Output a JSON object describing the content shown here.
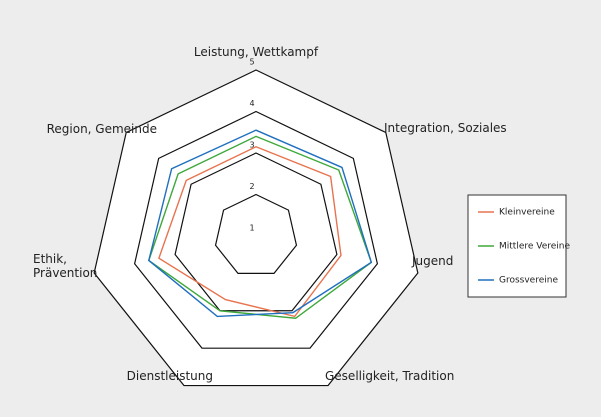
{
  "chart_data": {
    "type": "radar",
    "categories": [
      "Leistung, Wettkampf",
      "Integration, Soziales",
      "Jugend",
      "Geselligkeit, Tradition",
      "Dienstleistung",
      "Ethik, Prävention",
      "Region, Gemeinde"
    ],
    "series": [
      {
        "name": "Kleinvereine",
        "color": "#e8734f",
        "values": [
          3.15,
          3.3,
          3.1,
          3.15,
          2.7,
          3.4,
          3.15
        ]
      },
      {
        "name": "Mittlere Vereine",
        "color": "#3ea83a",
        "values": [
          3.4,
          3.55,
          3.85,
          3.2,
          3.0,
          3.65,
          3.4
        ]
      },
      {
        "name": "Grossvereine",
        "color": "#1f6fbf",
        "values": [
          3.55,
          3.65,
          3.85,
          3.05,
          3.15,
          3.65,
          3.6
        ]
      }
    ],
    "ylim": [
      1,
      5
    ],
    "yticks": [
      1,
      2,
      3,
      4,
      5
    ],
    "grid": true,
    "legend": "right"
  }
}
